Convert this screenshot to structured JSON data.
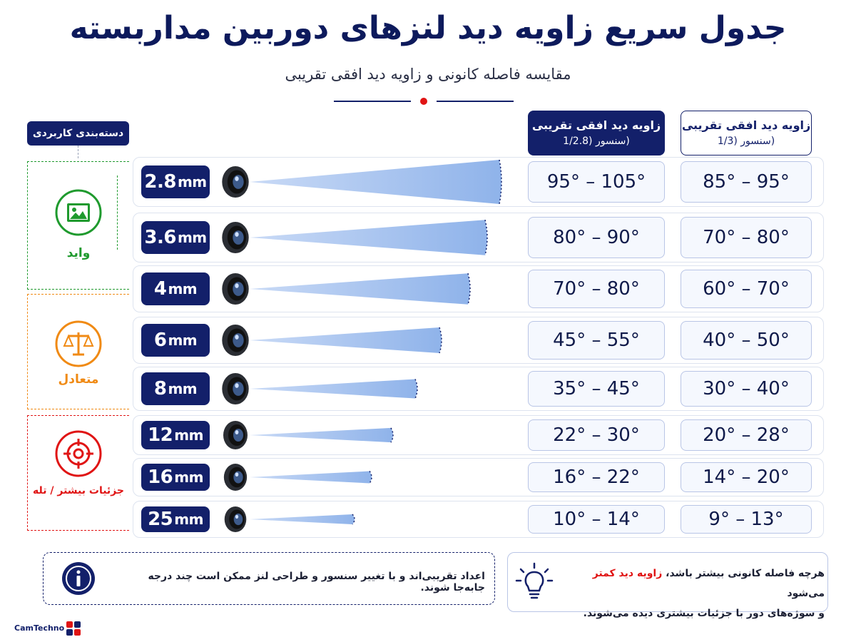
{
  "title": "جدول سریع زاویه دید لنزهای دوربین مداربسته",
  "subtitle": "مقایسه فاصله کانونی و زاویه دید افقی تقریبی",
  "headers": {
    "col_sensor_28_line1": "زاویه دید افقی تقریبی",
    "col_sensor_28_line2": "(سنسور (1/2.8",
    "col_sensor_13_line1": "زاویه دید افقی تقریبی",
    "col_sensor_13_line2": "(سنسور (1/3",
    "category_header": "دسته‌بندی کاربردی"
  },
  "categories": [
    {
      "label": "واید",
      "color": "#1f9a2e",
      "icon": "image-icon"
    },
    {
      "label": "متعادل",
      "color": "#f08a14",
      "icon": "scale-icon"
    },
    {
      "label": "جزئیات بیشتر / تله",
      "color": "#e01414",
      "icon": "target-icon"
    }
  ],
  "rows": [
    {
      "focal": "2.8",
      "unit": "mm",
      "fov_28": "95° – 105°",
      "fov_13": "85° – 95°"
    },
    {
      "focal": "3.6",
      "unit": "mm",
      "fov_28": "80° – 90°",
      "fov_13": "70° – 80°"
    },
    {
      "focal": "4",
      "unit": "mm",
      "fov_28": "70° – 80°",
      "fov_13": "60° – 70°"
    },
    {
      "focal": "6",
      "unit": "mm",
      "fov_28": "45° – 55°",
      "fov_13": "40° – 50°"
    },
    {
      "focal": "8",
      "unit": "mm",
      "fov_28": "35° – 45°",
      "fov_13": "30° – 40°"
    },
    {
      "focal": "12",
      "unit": "mm",
      "fov_28": "22° – 30°",
      "fov_13": "20° – 28°"
    },
    {
      "focal": "16",
      "unit": "mm",
      "fov_28": "16° – 22°",
      "fov_13": "14° – 20°"
    },
    {
      "focal": "25",
      "unit": "mm",
      "fov_28": "10° – 14°",
      "fov_13": "9° – 13°"
    }
  ],
  "notes": {
    "disclaimer": "اعداد تقریبی‌اند و با تغییر سنسور و طراحی لنز ممکن است چند درجه جابه‌جا شوند.",
    "tip_part1": "هرچه فاصله کانونی بیشتر باشد، ",
    "tip_highlight": "زاویه دید کمتر",
    "tip_part2": " می‌شود",
    "tip_line2": "و سوژه‌های دور با جزئیات بیشتری دیده می‌شوند.",
    "info_icon": "info-icon",
    "tip_icon": "lightbulb-icon"
  },
  "brand": {
    "name": "CamTechno",
    "accent": "#13206a",
    "highlight": "#e01414"
  }
}
